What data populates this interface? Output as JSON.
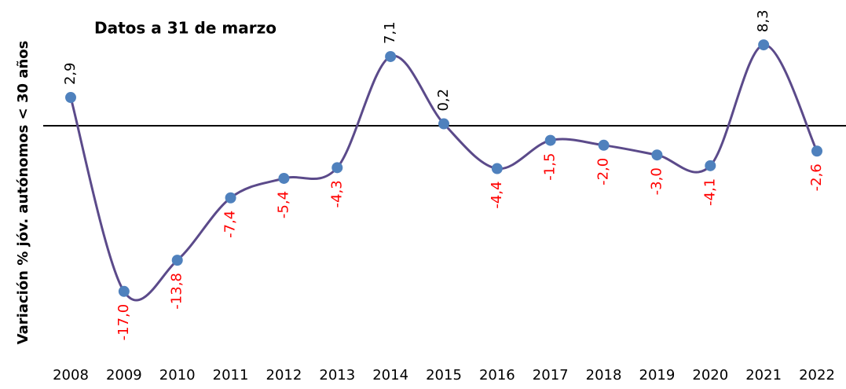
{
  "chart_data": {
    "type": "line",
    "title": "Datos a 31 de marzo",
    "y_label": "Variación % jóv. autónomos < 30 años",
    "categories": [
      "2008",
      "2009",
      "2010",
      "2011",
      "2012",
      "2013",
      "2014",
      "2015",
      "2016",
      "2017",
      "2018",
      "2019",
      "2020",
      "2021",
      "2022"
    ],
    "values": [
      2.9,
      -17.0,
      -13.8,
      -7.4,
      -5.4,
      -4.3,
      7.1,
      0.2,
      -4.4,
      -1.5,
      -2.0,
      -3.0,
      -4.1,
      8.3,
      -2.6
    ],
    "value_labels": [
      "2,9",
      "-17,0",
      "-13,8",
      "-7,4",
      "-5,4",
      "-4,3",
      "7,1",
      "0,2",
      "-4,4",
      "-1,5",
      "-2,0",
      "-3,0",
      "-4,1",
      "8,3",
      "-2,6"
    ],
    "color": "#5b4a8a",
    "marker_color": "#4f81bd",
    "positive_label_color": "#000000",
    "negative_label_color": "#ff0000",
    "ylim": [
      -22,
      11
    ],
    "smooth": true
  }
}
